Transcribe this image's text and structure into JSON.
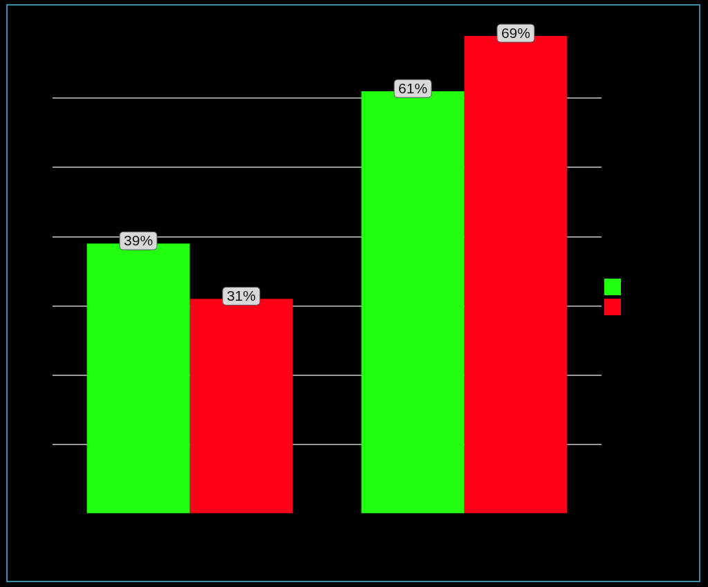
{
  "chart_data": {
    "type": "bar",
    "categories": [
      null,
      null
    ],
    "series": [
      {
        "color": "#22ff11",
        "values": [
          39,
          61
        ],
        "value_labels": [
          "39%",
          "61%"
        ]
      },
      {
        "color": "#ff0019",
        "values": [
          31,
          69
        ],
        "value_labels": [
          "31%",
          "69%"
        ]
      }
    ],
    "relative": false,
    "yticks": [
      {
        "value": 10,
        "label": null
      },
      {
        "value": 20,
        "label": null
      },
      {
        "value": 30,
        "label": null
      },
      {
        "value": 40,
        "label": null
      },
      {
        "value": 50,
        "label": null
      },
      {
        "value": 60,
        "label": null
      }
    ],
    "grid": "y"
  }
}
